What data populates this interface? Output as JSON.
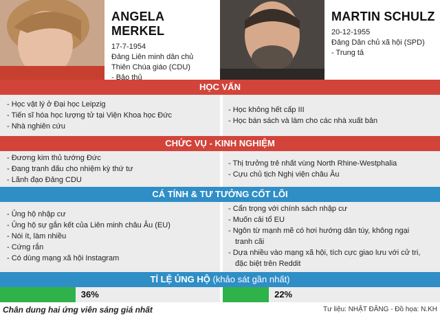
{
  "candidates": [
    {
      "name": "ANGELA MERKEL",
      "dob": "17-7-1954",
      "party_line1": "Đảng Liên minh dân chủ",
      "party_line2": "Thiên Chúa giáo (CDU)",
      "ideology": "- Bảo thủ"
    },
    {
      "name": "MARTIN SCHULZ",
      "dob": "20-12-1955",
      "party_line1": "Đảng Dân chủ xã hội (SPD)",
      "ideology": "- Trung tả"
    }
  ],
  "sections": {
    "education": {
      "title": "HỌC VẤN",
      "left": [
        "- Học vật lý ở Đại học Leipzig",
        "- Tiến sĩ hóa học lượng tử tại Viện Khoa học Đức",
        "- Nhà nghiên cứu"
      ],
      "right": [
        "- Học không hết cấp III",
        "- Học bán sách và làm cho các nhà xuất bản"
      ]
    },
    "career": {
      "title": "CHỨC VỤ - KINH NGHIỆM",
      "left": [
        "- Đương kim thủ tướng Đức",
        "- Đang tranh đấu cho nhiệm kỳ thứ tư",
        "- Lãnh đạo Đảng CDU"
      ],
      "right": [
        "- Thị trưởng trẻ nhất vùng North Rhine-Westphalia",
        "- Cựu chủ tịch Nghị viện châu Âu"
      ]
    },
    "personality": {
      "title": "CÁ TÍNH & TƯ TƯỞNG CỐT LÕI",
      "left": [
        "- Ủng hộ nhập cư",
        "- Ủng hộ sự gắn kết của Liên minh châu Âu (EU)",
        "- Nói ít, làm nhiều",
        "- Cứng rắn",
        "- Có dùng mạng xã hội Instagram"
      ],
      "right": [
        "- Cẩn trọng với chính sách nhập cư",
        "- Muốn cải tổ EU",
        "- Ngôn từ mạnh mẽ có hơi hướng dân túy, không ngại",
        "  tranh cãi",
        "- Dựa nhiều vào mạng xã hội, tích cực giao lưu với cử tri,",
        "  đặc biệt trên Reddit"
      ]
    }
  },
  "support": {
    "title_bold": "TỈ LỆ ỦNG HỘ",
    "title_note": " (khảo sát gần nhất)",
    "merkel_label": "36%",
    "merkel_value": 36,
    "schulz_label": "22%",
    "schulz_value": 22,
    "bar_color": "#2fb24a"
  },
  "footer": {
    "caption": "Chân dung hai ứng viên sáng giá nhất",
    "credit": "Tư liệu: NHẬT ĐĂNG - Đồ họa: N.KH"
  },
  "colors": {
    "red_header": "#d2443a",
    "blue_header": "#2f8ec6",
    "row_bg": "#ececec"
  }
}
